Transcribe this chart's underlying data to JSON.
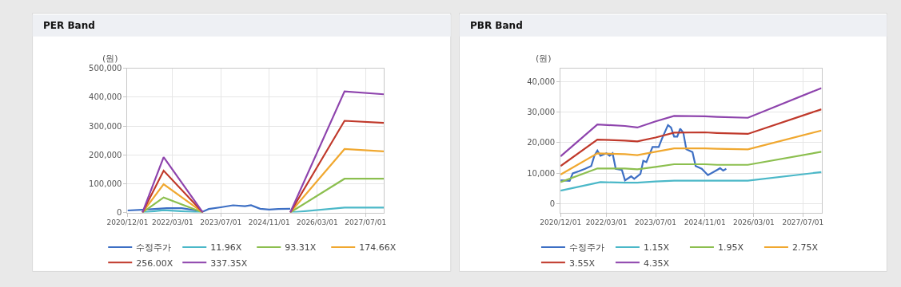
{
  "chart_data": [
    {
      "type": "line",
      "title": "PER Band",
      "ylabel": "(원)",
      "grid": true,
      "legend": "bottom",
      "marker": "none",
      "line_style": "solid",
      "xlim": [
        "2020-12-01",
        "2028-01-01"
      ],
      "xticks": [
        {
          "value": "2020-12-01",
          "label": "2020/12/01"
        },
        {
          "value": "2022-03-01",
          "label": "2022/03/01"
        },
        {
          "value": "2023-07-01",
          "label": "2023/07/01"
        },
        {
          "value": "2024-11-01",
          "label": "2024/11/01"
        },
        {
          "value": "2026-03-01",
          "label": "2026/03/01"
        },
        {
          "value": "2027-07-01",
          "label": "2027/07/01"
        }
      ],
      "ylim": [
        0,
        500000
      ],
      "yticks": [
        0,
        {
          "value": 100000,
          "label": "100,000"
        },
        {
          "value": 200000,
          "label": "200,000"
        },
        {
          "value": 300000,
          "label": "300,000"
        },
        {
          "value": 400000,
          "label": "400,000"
        },
        {
          "value": 500000,
          "label": "500,000"
        }
      ],
      "series": [
        {
          "name": "수정주가",
          "color": "#3d6fc4",
          "x": [
            "2020-12",
            "2021-06",
            "2022-01",
            "2022-06",
            "2022-09",
            "2023-01",
            "2023-03",
            "2023-07",
            "2023-11",
            "2024-03",
            "2024-05",
            "2024-08",
            "2024-11",
            "2025-02",
            "2025-06"
          ],
          "values": [
            7000,
            10000,
            15000,
            15000,
            10000,
            3000,
            12000,
            18000,
            25000,
            22000,
            25000,
            13000,
            10000,
            12000,
            13000
          ]
        },
        {
          "name": "11.96X",
          "color": "#4bb8c8",
          "x": [
            "2021-05",
            "2021-12",
            "2023-01",
            "2024-01",
            "2025-06",
            "2026-12",
            "2028-01"
          ],
          "values": [
            0,
            8000,
            0,
            null,
            0,
            17000,
            17000
          ]
        },
        {
          "name": "93.31X",
          "color": "#8cbf4f",
          "x": [
            "2021-05",
            "2021-12",
            "2023-01",
            "2024-01",
            "2025-06",
            "2026-12",
            "2028-01"
          ],
          "values": [
            0,
            52000,
            0,
            null,
            0,
            117000,
            117000
          ]
        },
        {
          "name": "174.66X",
          "color": "#f0a830",
          "x": [
            "2021-05",
            "2021-12",
            "2023-01",
            "2024-01",
            "2025-06",
            "2026-12",
            "2028-01"
          ],
          "values": [
            0,
            98000,
            0,
            null,
            0,
            220000,
            212000
          ]
        },
        {
          "name": "256.00X",
          "color": "#c0392b",
          "x": [
            "2021-05",
            "2021-12",
            "2023-01",
            "2024-01",
            "2025-06",
            "2026-12",
            "2028-01"
          ],
          "values": [
            0,
            145000,
            0,
            null,
            0,
            318000,
            311000
          ]
        },
        {
          "name": "337.35X",
          "color": "#8e44ad",
          "x": [
            "2021-05",
            "2021-12",
            "2023-01",
            "2024-01",
            "2025-06",
            "2026-12",
            "2028-01"
          ],
          "values": [
            0,
            192000,
            0,
            null,
            0,
            420000,
            410000
          ]
        }
      ]
    },
    {
      "type": "line",
      "title": "PBR Band",
      "ylabel": "(원)",
      "grid": true,
      "legend": "bottom",
      "marker": "none",
      "line_style": "solid",
      "xlim": [
        "2020-12-01",
        "2028-01-01"
      ],
      "xticks": [
        {
          "value": "2020-12-01",
          "label": "2020/12/01"
        },
        {
          "value": "2022-03-01",
          "label": "2022/03/01"
        },
        {
          "value": "2023-07-01",
          "label": "2023/07/01"
        },
        {
          "value": "2024-11-01",
          "label": "2024/11/01"
        },
        {
          "value": "2026-03-01",
          "label": "2026/03/01"
        },
        {
          "value": "2027-07-01",
          "label": "2027/07/01"
        }
      ],
      "ylim": [
        -3000,
        44500
      ],
      "yticks": [
        0,
        {
          "value": 10000,
          "label": "10,000"
        },
        {
          "value": 20000,
          "label": "20,000"
        },
        {
          "value": 30000,
          "label": "30,000"
        },
        {
          "value": 40000,
          "label": "40,000"
        }
      ],
      "series": [
        {
          "name": "수정주가",
          "color": "#3d6fc4",
          "x": [
            "2020-12",
            "2021-03",
            "2021-04",
            "2021-06",
            "2021-08",
            "2021-10",
            "2021-11",
            "2021-12",
            "2022-01",
            "2022-03",
            "2022-04",
            "2022-05",
            "2022-06",
            "2022-08",
            "2022-09",
            "2022-11",
            "2022-12",
            "2023-02",
            "2023-03",
            "2023-04",
            "2023-06",
            "2023-08",
            "2023-09",
            "2023-11",
            "2023-12",
            "2024-01",
            "2024-02",
            "2024-03",
            "2024-04",
            "2024-05",
            "2024-07",
            "2024-08",
            "2024-10",
            "2024-12",
            "2025-03",
            "2025-04",
            "2025-05",
            "2025-06"
          ],
          "values": [
            7600,
            7400,
            9900,
            10600,
            11400,
            12300,
            15700,
            17400,
            15700,
            16500,
            15700,
            16500,
            11400,
            11000,
            7600,
            8900,
            8100,
            9700,
            14000,
            13600,
            18600,
            18600,
            21200,
            25800,
            25000,
            22000,
            22000,
            24600,
            23300,
            17800,
            16900,
            12300,
            11400,
            9300,
            11000,
            11600,
            10800,
            11400
          ]
        },
        {
          "name": "1.15X",
          "color": "#4bb8c8",
          "x": [
            "2020-12",
            "2022-01",
            "2022-09",
            "2023-01",
            "2023-07",
            "2024-01",
            "2024-11",
            "2025-03",
            "2026-01",
            "2028-01"
          ],
          "values": [
            4200,
            7000,
            6800,
            6800,
            7200,
            7500,
            7500,
            7500,
            7500,
            10300
          ]
        },
        {
          "name": "1.95X",
          "color": "#8cbf4f",
          "x": [
            "2020-12",
            "2021-12",
            "2022-09",
            "2023-01",
            "2023-07",
            "2024-01",
            "2024-11",
            "2025-03",
            "2026-01",
            "2028-01"
          ],
          "values": [
            7000,
            11500,
            11500,
            11200,
            12000,
            12900,
            12900,
            12700,
            12700,
            17000
          ]
        },
        {
          "name": "2.75X",
          "color": "#f0a830",
          "x": [
            "2020-12",
            "2021-12",
            "2022-09",
            "2023-01",
            "2023-07",
            "2024-01",
            "2024-11",
            "2025-03",
            "2026-01",
            "2028-01"
          ],
          "values": [
            9500,
            16500,
            16200,
            15900,
            17000,
            18100,
            18100,
            18000,
            17800,
            24000
          ]
        },
        {
          "name": "3.55X",
          "color": "#c0392b",
          "x": [
            "2020-12",
            "2021-12",
            "2022-09",
            "2023-01",
            "2023-07",
            "2024-01",
            "2024-11",
            "2025-03",
            "2026-01",
            "2028-01"
          ],
          "values": [
            12300,
            21000,
            20700,
            20400,
            21700,
            23300,
            23400,
            23200,
            22900,
            31000
          ]
        },
        {
          "name": "4.35X",
          "color": "#8e44ad",
          "x": [
            "2020-12",
            "2021-12",
            "2022-09",
            "2023-01",
            "2023-07",
            "2024-01",
            "2024-11",
            "2025-03",
            "2026-01",
            "2028-01"
          ],
          "values": [
            15500,
            26000,
            25500,
            25000,
            27000,
            28800,
            28700,
            28500,
            28200,
            38000
          ]
        }
      ]
    }
  ]
}
